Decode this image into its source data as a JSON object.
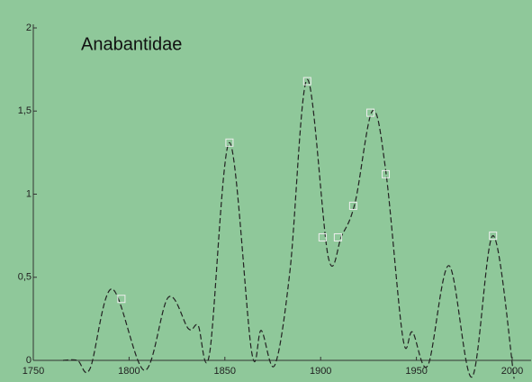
{
  "chart_data": {
    "type": "line",
    "title": "Anabantidae",
    "xlim": [
      1750,
      2000
    ],
    "xticks": [
      1750,
      1800,
      1850,
      1900,
      1950,
      2000
    ],
    "ylim": [
      0,
      2
    ],
    "yticks": [
      0,
      {
        "value": 0.5,
        "label": "0,5"
      },
      1,
      {
        "value": 1.5,
        "label": "1,5"
      },
      2
    ],
    "series": [
      {
        "color": "#222222",
        "dashed": true,
        "x": [
          1765.5,
          1773,
          1779.6,
          1791,
          1808,
          1820.5,
          1831,
          1836,
          1842,
          1852.4,
          1864,
          1869,
          1876,
          1884,
          1893,
          1904,
          1911,
          1918,
          1927,
          1934,
          1943,
          1948,
          1956,
          1967,
          1979,
          1990,
          2001
        ],
        "values": [
          0,
          0,
          -0.05,
          0.43,
          -0.06,
          0.38,
          0.19,
          0.21,
          0.04,
          1.31,
          0.05,
          0.18,
          -0.03,
          0.54,
          1.69,
          0.62,
          0.75,
          0.95,
          1.5,
          1.14,
          0.13,
          0.17,
          -0.03,
          0.57,
          -0.1,
          0.75,
          -0.11
        ]
      },
      {
        "color": "#eeeeee",
        "marker": "square",
        "x": [
          1796,
          1852.4,
          1893,
          1901,
          1909,
          1917,
          1926,
          1934,
          1990
        ],
        "values": [
          0.37,
          1.31,
          1.68,
          0.74,
          0.74,
          0.93,
          1.49,
          1.12,
          0.75
        ]
      }
    ]
  }
}
